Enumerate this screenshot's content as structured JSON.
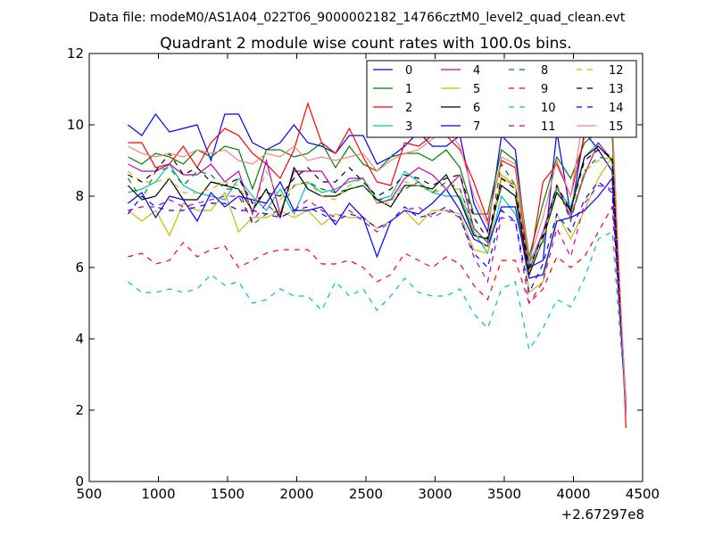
{
  "chart_data": {
    "type": "line",
    "suptitle": "Data file: modeM0/AS1A04_022T06_9000002182_14766cztM0_level2_quad_clean.evt",
    "title": "Quadrant 2 module wise count rates with 100.0s bins.",
    "xlabel": "",
    "ylabel": "",
    "xlim": [
      500,
      4500
    ],
    "ylim": [
      0,
      12
    ],
    "x_offset_label": "+2.67297e8",
    "x_ticks": [
      500,
      1000,
      1500,
      2000,
      2500,
      3000,
      3500,
      4000,
      4500
    ],
    "y_ticks": [
      0,
      2,
      4,
      6,
      8,
      10,
      12
    ],
    "legend_position": "top-right",
    "legend_columns": 4,
    "x": [
      780,
      880,
      980,
      1080,
      1180,
      1280,
      1380,
      1480,
      1580,
      1680,
      1780,
      1880,
      1980,
      2080,
      2180,
      2280,
      2380,
      2480,
      2580,
      2680,
      2780,
      2880,
      2980,
      3080,
      3180,
      3280,
      3380,
      3480,
      3580,
      3680,
      3780,
      3880,
      3980,
      4080,
      4180,
      4280,
      4380
    ],
    "series": [
      {
        "name": "0",
        "color": "#0000ff",
        "dash": "solid",
        "values": [
          10.0,
          9.7,
          10.3,
          9.8,
          9.9,
          10.0,
          9.0,
          10.3,
          10.3,
          9.5,
          9.3,
          9.5,
          10.0,
          9.5,
          9.4,
          9.2,
          9.7,
          9.7,
          8.9,
          9.1,
          9.4,
          9.8,
          9.4,
          9.4,
          9.7,
          7.8,
          7.0,
          9.7,
          9.3,
          6.0,
          6.2,
          9.8,
          7.5,
          9.8,
          9.3,
          8.7,
          1.9
        ]
      },
      {
        "name": "1",
        "color": "#008000",
        "dash": "solid",
        "values": [
          9.1,
          8.9,
          9.2,
          9.1,
          8.9,
          9.3,
          9.1,
          9.4,
          9.3,
          8.2,
          9.3,
          9.3,
          9.1,
          9.2,
          9.5,
          8.8,
          9.4,
          8.9,
          8.7,
          9.1,
          9.2,
          9.2,
          9.0,
          9.3,
          8.8,
          7.5,
          7.5,
          9.3,
          9.0,
          6.3,
          7.8,
          9.1,
          8.5,
          9.5,
          9.8,
          9.7,
          2.0
        ]
      },
      {
        "name": "2",
        "color": "#ff0000",
        "dash": "solid",
        "values": [
          9.5,
          9.5,
          8.8,
          8.9,
          9.4,
          8.8,
          9.5,
          9.9,
          9.7,
          9.2,
          8.9,
          8.5,
          9.3,
          10.6,
          9.5,
          9.2,
          9.9,
          9.1,
          8.4,
          8.3,
          9.5,
          9.4,
          9.7,
          9.7,
          9.3,
          8.4,
          7.3,
          9.0,
          8.8,
          6.0,
          8.4,
          8.9,
          8.0,
          9.7,
          10.0,
          10.2,
          1.5
        ]
      },
      {
        "name": "3",
        "color": "#00bfbf",
        "dash": "solid",
        "values": [
          8.1,
          8.2,
          8.4,
          8.9,
          8.3,
          8.1,
          8.0,
          7.9,
          8.5,
          8.0,
          7.6,
          8.2,
          7.5,
          8.4,
          8.1,
          8.2,
          8.4,
          8.5,
          7.9,
          8.0,
          8.7,
          8.4,
          8.1,
          8.0,
          8.0,
          7.0,
          6.4,
          8.0,
          7.5,
          6.1,
          7.0,
          8.2,
          7.7,
          9.1,
          9.5,
          9.0,
          2.1
        ]
      },
      {
        "name": "4",
        "color": "#bf00bf",
        "dash": "solid",
        "values": [
          8.9,
          8.7,
          8.7,
          8.9,
          8.6,
          8.6,
          8.9,
          8.4,
          8.7,
          7.5,
          9.0,
          7.5,
          8.7,
          8.7,
          8.7,
          8.1,
          8.5,
          8.5,
          7.8,
          7.9,
          8.5,
          8.8,
          8.6,
          8.2,
          8.6,
          7.1,
          6.7,
          8.5,
          8.3,
          5.9,
          7.0,
          8.3,
          7.4,
          8.6,
          9.5,
          9.0,
          2.2
        ]
      },
      {
        "name": "5",
        "color": "#bfbf00",
        "dash": "solid",
        "values": [
          7.6,
          7.3,
          7.6,
          6.9,
          7.8,
          7.6,
          7.6,
          8.1,
          7.0,
          7.4,
          7.4,
          7.6,
          7.4,
          7.6,
          7.2,
          7.5,
          7.4,
          7.4,
          7.1,
          7.3,
          7.6,
          7.2,
          7.6,
          7.6,
          7.5,
          6.5,
          6.4,
          8.6,
          8.3,
          5.3,
          5.6,
          7.5,
          6.8,
          7.6,
          8.5,
          9.1,
          2.0
        ]
      },
      {
        "name": "6",
        "color": "#000000",
        "dash": "solid",
        "values": [
          8.3,
          7.9,
          8.0,
          8.5,
          7.9,
          7.9,
          8.4,
          8.3,
          8.2,
          7.6,
          8.2,
          7.4,
          8.8,
          8.2,
          8.0,
          8.0,
          8.2,
          8.3,
          7.9,
          7.7,
          8.3,
          8.3,
          8.2,
          8.6,
          7.9,
          6.9,
          6.8,
          8.3,
          8.0,
          5.8,
          6.8,
          8.1,
          7.6,
          9.1,
          9.4,
          9.0,
          2.0
        ]
      },
      {
        "name": "7",
        "color": "#0000ff",
        "dash": "solid",
        "values": [
          7.8,
          8.1,
          7.4,
          8.0,
          7.9,
          7.3,
          8.1,
          7.7,
          8.0,
          7.9,
          7.8,
          8.4,
          7.6,
          7.6,
          7.7,
          7.2,
          7.8,
          7.4,
          6.3,
          7.3,
          7.6,
          7.5,
          7.8,
          8.2,
          7.6,
          6.8,
          6.6,
          7.7,
          7.7,
          5.7,
          5.8,
          7.3,
          7.4,
          7.6,
          8.0,
          8.5,
          1.9
        ]
      },
      {
        "name": "8",
        "color": "#008000",
        "dash": "dashed",
        "values": [
          8.5,
          7.9,
          8.7,
          8.8,
          8.3,
          8.7,
          8.6,
          8.2,
          8.2,
          7.2,
          7.5,
          7.6,
          8.3,
          8.4,
          8.2,
          8.1,
          8.2,
          8.3,
          7.9,
          7.9,
          8.2,
          8.4,
          8.1,
          8.4,
          8.2,
          7.1,
          6.7,
          8.9,
          8.3,
          6.0,
          6.7,
          8.3,
          7.3,
          8.7,
          9.1,
          9.0,
          2.0
        ]
      },
      {
        "name": "9",
        "color": "#ff0000",
        "dash": "dashed",
        "values": [
          6.3,
          6.4,
          6.1,
          6.2,
          6.7,
          6.3,
          6.5,
          6.6,
          6.0,
          6.2,
          6.4,
          6.5,
          6.5,
          6.5,
          6.1,
          6.1,
          6.2,
          6.0,
          5.6,
          5.8,
          6.4,
          6.2,
          6.0,
          6.3,
          6.1,
          5.5,
          5.1,
          6.2,
          6.2,
          5.0,
          5.4,
          6.3,
          6.0,
          6.3,
          7.0,
          7.7,
          2.1
        ]
      },
      {
        "name": "10",
        "color": "#00bfbf",
        "dash": "dashed",
        "values": [
          5.6,
          5.3,
          5.3,
          5.4,
          5.3,
          5.4,
          5.8,
          5.5,
          5.6,
          5.0,
          5.1,
          5.4,
          5.2,
          5.2,
          4.8,
          5.6,
          5.2,
          5.4,
          4.8,
          5.2,
          5.7,
          5.3,
          5.2,
          5.2,
          5.4,
          4.7,
          4.3,
          5.4,
          5.6,
          3.7,
          4.3,
          5.1,
          4.9,
          5.7,
          6.8,
          7.0,
          2.0
        ]
      },
      {
        "name": "11",
        "color": "#bf00bf",
        "dash": "dashed",
        "values": [
          7.6,
          7.7,
          7.7,
          7.9,
          7.7,
          7.8,
          7.9,
          8.0,
          8.0,
          7.3,
          7.8,
          7.4,
          7.6,
          7.9,
          7.6,
          7.4,
          7.6,
          7.3,
          7.0,
          7.3,
          7.6,
          7.7,
          7.4,
          7.6,
          7.4,
          6.3,
          5.6,
          7.4,
          7.3,
          5.0,
          5.6,
          7.1,
          6.3,
          7.8,
          8.3,
          8.2,
          2.1
        ]
      },
      {
        "name": "12",
        "color": "#bfbf00",
        "dash": "dashed",
        "values": [
          8.7,
          8.4,
          8.4,
          8.5,
          8.1,
          8.1,
          8.2,
          8.4,
          8.3,
          7.6,
          8.7,
          7.9,
          8.3,
          8.4,
          8.0,
          7.9,
          8.3,
          8.5,
          7.8,
          7.8,
          8.4,
          8.3,
          8.1,
          8.2,
          8.2,
          7.0,
          6.5,
          8.5,
          8.3,
          5.9,
          6.8,
          8.3,
          7.5,
          8.7,
          9.0,
          9.1,
          2.0
        ]
      },
      {
        "name": "13",
        "color": "#000000",
        "dash": "dashed",
        "values": [
          8.6,
          8.4,
          8.7,
          9.2,
          8.6,
          8.8,
          8.4,
          8.3,
          8.5,
          7.8,
          8.1,
          8.0,
          8.5,
          8.8,
          8.4,
          8.4,
          8.8,
          8.4,
          8.0,
          8.2,
          8.6,
          8.5,
          8.3,
          8.5,
          8.6,
          7.4,
          6.8,
          8.5,
          8.2,
          6.0,
          6.9,
          8.3,
          7.6,
          9.0,
          9.3,
          9.1,
          2.0
        ]
      },
      {
        "name": "14",
        "color": "#0000ff",
        "dash": "dashed",
        "values": [
          7.5,
          8.0,
          7.7,
          7.6,
          7.6,
          7.7,
          7.8,
          7.8,
          7.6,
          7.6,
          7.5,
          7.4,
          7.6,
          7.7,
          7.5,
          7.3,
          7.5,
          7.4,
          7.1,
          7.3,
          7.7,
          7.4,
          7.5,
          7.7,
          7.4,
          6.4,
          6.0,
          7.6,
          7.3,
          5.3,
          6.1,
          7.5,
          7.0,
          7.9,
          8.4,
          8.1,
          2.0
        ]
      },
      {
        "name": "15",
        "color": "#ff8080",
        "dash": "solid",
        "values": [
          9.4,
          9.2,
          9.1,
          9.2,
          9.1,
          9.3,
          9.2,
          9.3,
          9.0,
          8.9,
          9.2,
          9.1,
          9.4,
          9.0,
          9.1,
          9.0,
          9.1,
          9.2,
          8.7,
          9.0,
          9.2,
          9.3,
          9.6,
          9.9,
          9.4,
          8.0,
          7.2,
          9.1,
          8.9,
          6.2,
          7.4,
          9.0,
          8.0,
          10.4,
          10.0,
          10.1,
          1.9
        ]
      }
    ]
  }
}
